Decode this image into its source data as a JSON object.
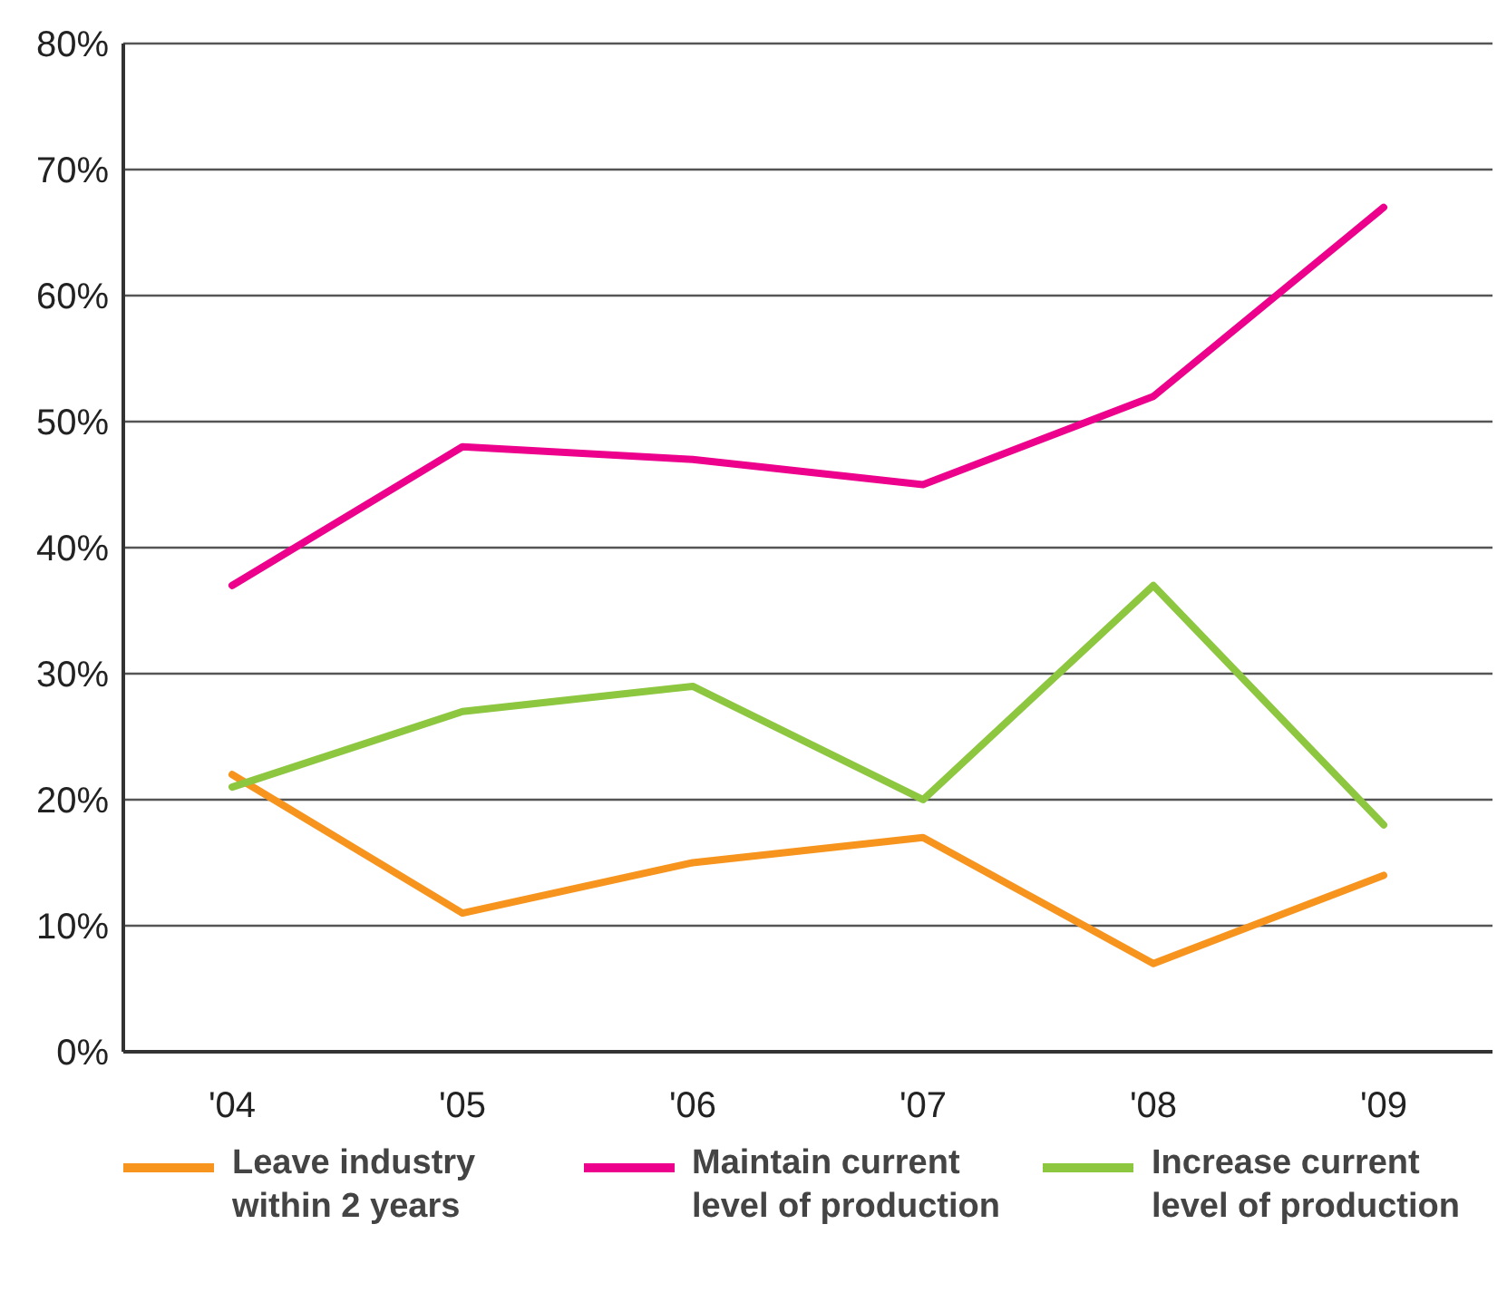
{
  "chart_data": {
    "type": "line",
    "categories": [
      "'04",
      "'05",
      "'06",
      "'07",
      "'08",
      "'09"
    ],
    "series": [
      {
        "name": "Leave industry within 2 years",
        "color": "#f7941d",
        "values": [
          22,
          11,
          15,
          17,
          7,
          14
        ]
      },
      {
        "name": "Maintain current level of production",
        "color": "#ec008c",
        "values": [
          37,
          48,
          47,
          45,
          52,
          67
        ]
      },
      {
        "name": "Increase current level of production",
        "color": "#8dc63f",
        "values": [
          21,
          27,
          29,
          20,
          37,
          18
        ]
      }
    ],
    "ylim": [
      0,
      80
    ],
    "yticks": [
      {
        "value": 0,
        "label": "0%"
      },
      {
        "value": 10,
        "label": "10%"
      },
      {
        "value": 20,
        "label": "20%"
      },
      {
        "value": 30,
        "label": "30%"
      },
      {
        "value": 40,
        "label": "40%"
      },
      {
        "value": 50,
        "label": "50%"
      },
      {
        "value": 60,
        "label": "60%"
      },
      {
        "value": 70,
        "label": "70%"
      },
      {
        "value": 80,
        "label": "80%"
      }
    ],
    "grid": "y",
    "legend": "bottom",
    "marker": "none",
    "line_style": "solid"
  }
}
